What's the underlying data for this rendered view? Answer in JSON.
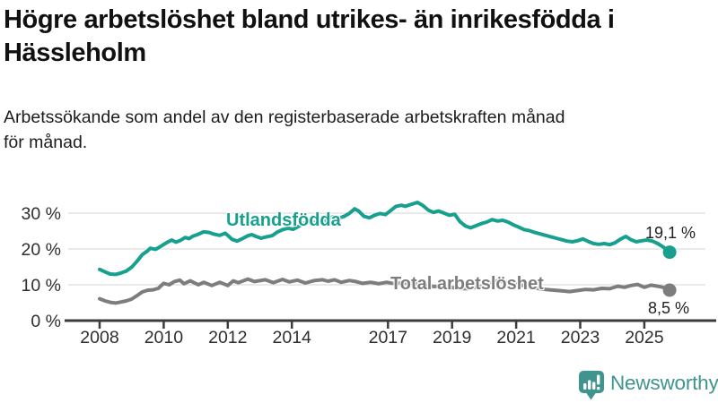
{
  "header": {
    "title_lines": [
      "Högre arbetslöshet bland utrikes- än inrikesfödda i",
      "Hässleholm"
    ],
    "subtitle_lines": [
      "Arbetssökande som andel av den registerbaserade arbetskraften månad",
      "för månad."
    ]
  },
  "footer": {
    "brand": "Newsworthy",
    "brand_color": "#3f948d",
    "logo_icon": "speech-bubble-bar-chart"
  },
  "chart_data": {
    "type": "line",
    "title": "Högre arbetslöshet bland utrikes- än inrikesfödda i Hässleholm",
    "subtitle": "Arbetssökande som andel av den registerbaserade arbetskraften månad för månad.",
    "xlabel": "",
    "ylabel": "",
    "grid": true,
    "legend_position": "inline-labels",
    "xlim": [
      2007.6,
      2026.2
    ],
    "ylim": [
      0,
      34
    ],
    "y_ticks": [
      {
        "value": 0,
        "label": "0 %"
      },
      {
        "value": 10,
        "label": "10 %"
      },
      {
        "value": 20,
        "label": "20 %"
      },
      {
        "value": 30,
        "label": "30 %"
      }
    ],
    "x_ticks": [
      {
        "year": 2008,
        "label": "2008"
      },
      {
        "year": 2010,
        "label": "2010"
      },
      {
        "year": 2012,
        "label": "2012"
      },
      {
        "year": 2014,
        "label": "2014"
      },
      {
        "year": 2017,
        "label": "2017"
      },
      {
        "year": 2019,
        "label": "2019"
      },
      {
        "year": 2021,
        "label": "2021"
      },
      {
        "year": 2023,
        "label": "2023"
      },
      {
        "year": 2025,
        "label": "2025"
      }
    ],
    "series": [
      {
        "name": "Utlandsfödda",
        "color": "#17a08e",
        "end_value_label": "19,1 %",
        "end_value": 19.1,
        "points": [
          [
            2008.0,
            14.3
          ],
          [
            2008.17,
            13.6
          ],
          [
            2008.33,
            13.0
          ],
          [
            2008.5,
            12.9
          ],
          [
            2008.67,
            13.3
          ],
          [
            2008.83,
            13.8
          ],
          [
            2009.0,
            14.9
          ],
          [
            2009.17,
            16.6
          ],
          [
            2009.33,
            18.4
          ],
          [
            2009.5,
            19.5
          ],
          [
            2009.58,
            20.2
          ],
          [
            2009.75,
            19.9
          ],
          [
            2009.92,
            20.8
          ],
          [
            2010.08,
            21.7
          ],
          [
            2010.25,
            22.5
          ],
          [
            2010.38,
            21.9
          ],
          [
            2010.5,
            22.3
          ],
          [
            2010.67,
            23.2
          ],
          [
            2010.79,
            22.9
          ],
          [
            2010.92,
            23.6
          ],
          [
            2011.08,
            24.1
          ],
          [
            2011.25,
            24.8
          ],
          [
            2011.42,
            24.6
          ],
          [
            2011.58,
            24.1
          ],
          [
            2011.75,
            23.8
          ],
          [
            2011.92,
            24.4
          ],
          [
            2012.0,
            23.8
          ],
          [
            2012.13,
            22.7
          ],
          [
            2012.29,
            22.2
          ],
          [
            2012.46,
            22.9
          ],
          [
            2012.63,
            23.7
          ],
          [
            2012.75,
            24.0
          ],
          [
            2012.88,
            23.5
          ],
          [
            2013.04,
            23.0
          ],
          [
            2013.21,
            23.4
          ],
          [
            2013.38,
            23.7
          ],
          [
            2013.54,
            24.7
          ],
          [
            2013.71,
            25.4
          ],
          [
            2013.88,
            25.8
          ],
          [
            2014.04,
            25.5
          ],
          [
            2014.21,
            26.3
          ],
          [
            2014.38,
            27.2
          ],
          [
            2014.5,
            27.5
          ],
          [
            2014.63,
            27.1
          ],
          [
            2014.79,
            27.7
          ],
          [
            2014.96,
            27.4
          ],
          [
            2015.13,
            28.4
          ],
          [
            2015.29,
            29.0
          ],
          [
            2015.46,
            28.6
          ],
          [
            2015.63,
            29.1
          ],
          [
            2015.79,
            29.9
          ],
          [
            2015.96,
            31.2
          ],
          [
            2016.08,
            30.6
          ],
          [
            2016.25,
            29.1
          ],
          [
            2016.42,
            28.7
          ],
          [
            2016.58,
            29.4
          ],
          [
            2016.75,
            29.9
          ],
          [
            2016.92,
            29.6
          ],
          [
            2017.08,
            30.7
          ],
          [
            2017.25,
            31.9
          ],
          [
            2017.42,
            32.2
          ],
          [
            2017.54,
            31.9
          ],
          [
            2017.71,
            32.4
          ],
          [
            2017.92,
            33.0
          ],
          [
            2018.08,
            32.2
          ],
          [
            2018.25,
            30.9
          ],
          [
            2018.42,
            30.2
          ],
          [
            2018.58,
            30.6
          ],
          [
            2018.75,
            30.0
          ],
          [
            2018.92,
            29.4
          ],
          [
            2019.08,
            29.7
          ],
          [
            2019.25,
            27.6
          ],
          [
            2019.42,
            26.4
          ],
          [
            2019.58,
            25.9
          ],
          [
            2019.75,
            26.5
          ],
          [
            2019.92,
            27.1
          ],
          [
            2020.08,
            27.5
          ],
          [
            2020.25,
            28.2
          ],
          [
            2020.42,
            27.8
          ],
          [
            2020.58,
            28.0
          ],
          [
            2020.75,
            27.5
          ],
          [
            2020.92,
            26.7
          ],
          [
            2021.08,
            26.1
          ],
          [
            2021.25,
            25.4
          ],
          [
            2021.42,
            25.1
          ],
          [
            2021.58,
            24.6
          ],
          [
            2021.75,
            24.2
          ],
          [
            2021.92,
            23.8
          ],
          [
            2022.08,
            23.4
          ],
          [
            2022.25,
            23.0
          ],
          [
            2022.42,
            22.6
          ],
          [
            2022.58,
            22.2
          ],
          [
            2022.75,
            22.0
          ],
          [
            2022.92,
            22.3
          ],
          [
            2023.08,
            22.8
          ],
          [
            2023.25,
            22.1
          ],
          [
            2023.42,
            21.5
          ],
          [
            2023.58,
            21.3
          ],
          [
            2023.75,
            21.5
          ],
          [
            2023.92,
            21.2
          ],
          [
            2024.08,
            21.7
          ],
          [
            2024.25,
            22.7
          ],
          [
            2024.42,
            23.5
          ],
          [
            2024.58,
            22.6
          ],
          [
            2024.75,
            22.0
          ],
          [
            2024.92,
            22.3
          ],
          [
            2025.08,
            22.5
          ],
          [
            2025.25,
            22.2
          ],
          [
            2025.42,
            21.5
          ],
          [
            2025.58,
            20.6
          ],
          [
            2025.79,
            19.1
          ]
        ]
      },
      {
        "name": "Total arbetslöshet",
        "color": "#7d7d7d",
        "end_value_label": "8,5 %",
        "end_value": 8.5,
        "points": [
          [
            2008.0,
            6.1
          ],
          [
            2008.17,
            5.5
          ],
          [
            2008.33,
            5.1
          ],
          [
            2008.5,
            4.9
          ],
          [
            2008.67,
            5.2
          ],
          [
            2008.83,
            5.5
          ],
          [
            2009.0,
            6.0
          ],
          [
            2009.17,
            7.0
          ],
          [
            2009.33,
            8.0
          ],
          [
            2009.5,
            8.5
          ],
          [
            2009.67,
            8.6
          ],
          [
            2009.83,
            9.0
          ],
          [
            2010.0,
            10.4
          ],
          [
            2010.17,
            10.0
          ],
          [
            2010.33,
            10.9
          ],
          [
            2010.5,
            11.3
          ],
          [
            2010.63,
            10.3
          ],
          [
            2010.83,
            11.1
          ],
          [
            2011.08,
            10.0
          ],
          [
            2011.25,
            10.7
          ],
          [
            2011.5,
            9.8
          ],
          [
            2011.75,
            10.7
          ],
          [
            2012.0,
            9.8
          ],
          [
            2012.17,
            11.1
          ],
          [
            2012.33,
            10.6
          ],
          [
            2012.63,
            11.6
          ],
          [
            2012.83,
            10.9
          ],
          [
            2013.17,
            11.4
          ],
          [
            2013.42,
            10.6
          ],
          [
            2013.71,
            11.5
          ],
          [
            2013.92,
            10.8
          ],
          [
            2014.17,
            11.3
          ],
          [
            2014.42,
            10.5
          ],
          [
            2014.71,
            11.2
          ],
          [
            2014.96,
            11.4
          ],
          [
            2015.13,
            11.0
          ],
          [
            2015.33,
            11.4
          ],
          [
            2015.54,
            10.7
          ],
          [
            2015.79,
            11.2
          ],
          [
            2016.0,
            10.9
          ],
          [
            2016.21,
            10.4
          ],
          [
            2016.46,
            10.7
          ],
          [
            2016.71,
            10.3
          ],
          [
            2016.96,
            10.7
          ],
          [
            2017.21,
            10.3
          ],
          [
            2017.46,
            10.6
          ],
          [
            2017.71,
            10.2
          ],
          [
            2017.96,
            10.4
          ],
          [
            2018.21,
            9.8
          ],
          [
            2018.46,
            9.5
          ],
          [
            2018.71,
            9.7
          ],
          [
            2018.96,
            9.3
          ],
          [
            2019.21,
            9.0
          ],
          [
            2019.46,
            8.9
          ],
          [
            2019.71,
            9.2
          ],
          [
            2019.96,
            9.7
          ],
          [
            2020.21,
            10.7
          ],
          [
            2020.42,
            11.1
          ],
          [
            2020.63,
            10.8
          ],
          [
            2020.92,
            10.4
          ],
          [
            2021.17,
            9.9
          ],
          [
            2021.42,
            9.4
          ],
          [
            2021.67,
            9.0
          ],
          [
            2021.92,
            8.7
          ],
          [
            2022.17,
            8.5
          ],
          [
            2022.42,
            8.3
          ],
          [
            2022.67,
            8.1
          ],
          [
            2022.92,
            8.4
          ],
          [
            2023.17,
            8.7
          ],
          [
            2023.42,
            8.6
          ],
          [
            2023.67,
            9.0
          ],
          [
            2023.92,
            8.9
          ],
          [
            2024.17,
            9.6
          ],
          [
            2024.38,
            9.3
          ],
          [
            2024.58,
            9.8
          ],
          [
            2024.79,
            10.1
          ],
          [
            2025.0,
            9.3
          ],
          [
            2025.21,
            9.9
          ],
          [
            2025.42,
            9.6
          ],
          [
            2025.63,
            9.2
          ],
          [
            2025.79,
            8.5
          ]
        ]
      }
    ],
    "axis_color": "#3c3c3c",
    "gridline_color": "#e3e3e3",
    "tick_label_color": "#2e2e2e"
  }
}
